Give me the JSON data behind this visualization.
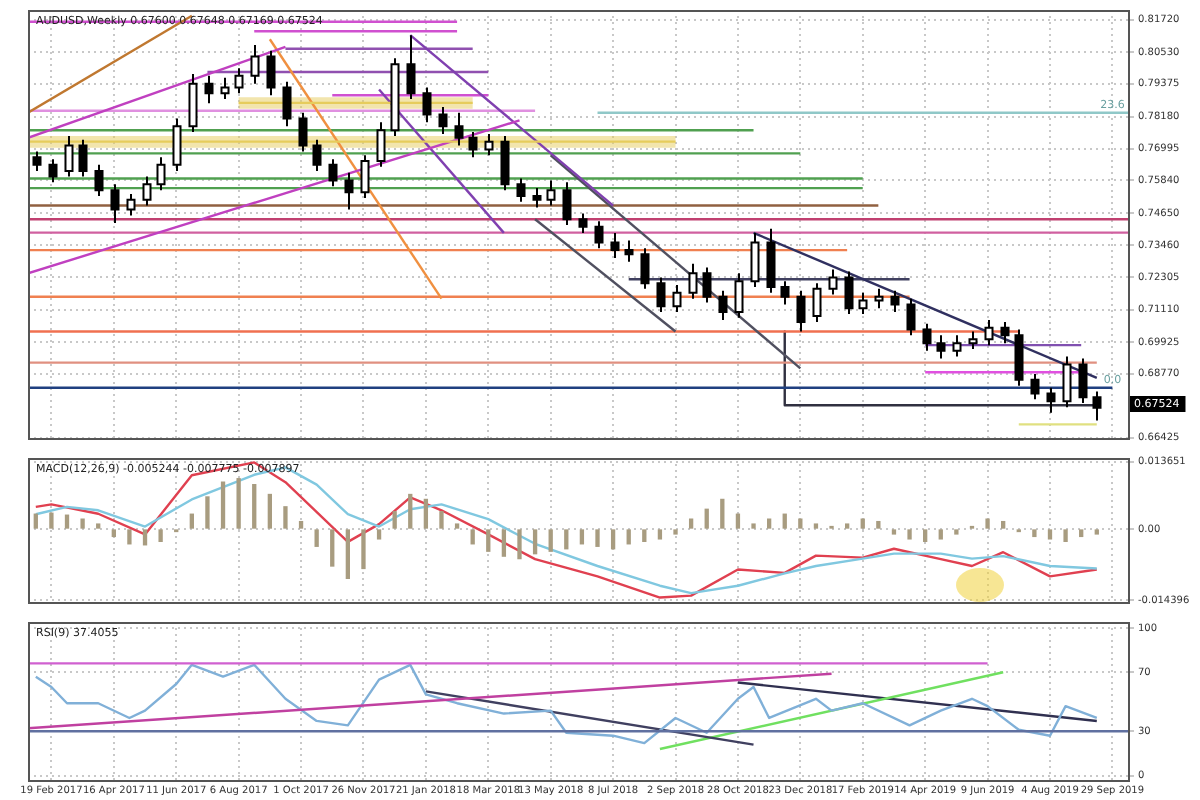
{
  "chart_data": [
    {
      "type": "candlestick",
      "title": "AUDUSD,Weekly 0.67600 0.67648 0.67169 0.67524",
      "tick_labels": "y",
      "grid": true,
      "xlim": [
        "2017-01-29",
        "2019-10-13"
      ],
      "xticks": [
        {
          "value": "2017-02-19",
          "label": null
        },
        {
          "value": "2017-04-16",
          "label": null
        },
        {
          "value": "2017-06-11",
          "label": null
        },
        {
          "value": "2017-08-06",
          "label": null
        },
        {
          "value": "2017-10-01",
          "label": null
        },
        {
          "value": "2017-11-26",
          "label": null
        },
        {
          "value": "2018-01-21",
          "label": null
        },
        {
          "value": "2018-03-18",
          "label": null
        },
        {
          "value": "2018-05-13",
          "label": null
        },
        {
          "value": "2018-07-08",
          "label": null
        },
        {
          "value": "2018-09-02",
          "label": null
        },
        {
          "value": "2018-10-28",
          "label": null
        },
        {
          "value": "2018-12-23",
          "label": null
        },
        {
          "value": "2019-02-17",
          "label": null
        },
        {
          "value": "2019-04-14",
          "label": null
        },
        {
          "value": "2019-06-09",
          "label": null
        },
        {
          "value": "2019-08-04",
          "label": null
        },
        {
          "value": "2019-09-29",
          "label": null
        }
      ],
      "ylim": [
        0.6641,
        0.8208
      ],
      "yticks": [
        {
          "value": 0.8172,
          "label": "0.81720"
        },
        {
          "value": 0.8053,
          "label": "0.80530"
        },
        0.79375,
        {
          "value": 0.7818,
          "label": "0.78180"
        },
        0.76995,
        {
          "value": 0.7584,
          "label": "0.75840"
        },
        {
          "value": 0.7465,
          "label": "0.74650"
        },
        {
          "value": 0.7346,
          "label": "0.73460"
        },
        0.72305,
        {
          "value": 0.7111,
          "label": "0.71110"
        },
        0.69925,
        {
          "value": 0.6877,
          "label": "0.68770"
        },
        0.66425
      ],
      "x": [
        "2017-02-05",
        "2017-02-19",
        "2017-03-05",
        "2017-03-19",
        "2017-04-02",
        "2017-04-16",
        "2017-04-30",
        "2017-05-14",
        "2017-05-28",
        "2017-06-11",
        "2017-06-25",
        "2017-07-09",
        "2017-07-23",
        "2017-08-06",
        "2017-08-20",
        "2017-09-03",
        "2017-09-17",
        "2017-10-01",
        "2017-10-15",
        "2017-10-29",
        "2017-11-12",
        "2017-11-26",
        "2017-12-10",
        "2017-12-24",
        "2018-01-07",
        "2018-01-21",
        "2018-02-04",
        "2018-02-18",
        "2018-03-04",
        "2018-03-18",
        "2018-04-01",
        "2018-04-15",
        "2018-04-29",
        "2018-05-13",
        "2018-05-27",
        "2018-06-10",
        "2018-06-24",
        "2018-07-08",
        "2018-07-22",
        "2018-08-05",
        "2018-08-19",
        "2018-09-02",
        "2018-09-16",
        "2018-09-30",
        "2018-10-14",
        "2018-10-28",
        "2018-11-11",
        "2018-11-25",
        "2018-12-09",
        "2018-12-23",
        "2019-01-06",
        "2019-01-20",
        "2019-02-03",
        "2019-02-17",
        "2019-03-03",
        "2019-03-17",
        "2019-03-31",
        "2019-04-14",
        "2019-04-28",
        "2019-05-12",
        "2019-05-26",
        "2019-06-09",
        "2019-06-23",
        "2019-07-07",
        "2019-07-21",
        "2019-08-04",
        "2019-08-18",
        "2019-09-01",
        "2019-09-15"
      ],
      "ohlc": [
        [
          0.7669,
          0.769,
          0.7619,
          0.7641
        ],
        [
          0.7641,
          0.7662,
          0.7577,
          0.7598
        ],
        [
          0.7619,
          0.7747,
          0.7598,
          0.7712
        ],
        [
          0.7712,
          0.7733,
          0.7598,
          0.7619
        ],
        [
          0.7619,
          0.7641,
          0.7527,
          0.7548
        ],
        [
          0.7548,
          0.757,
          0.7428,
          0.7478
        ],
        [
          0.7478,
          0.7534,
          0.7456,
          0.7513
        ],
        [
          0.7513,
          0.7598,
          0.7492,
          0.757
        ],
        [
          0.757,
          0.7669,
          0.7548,
          0.7641
        ],
        [
          0.7641,
          0.7811,
          0.7619,
          0.7782
        ],
        [
          0.7782,
          0.7974,
          0.7761,
          0.7938
        ],
        [
          0.7938,
          0.7967,
          0.7867,
          0.7903
        ],
        [
          0.7903,
          0.796,
          0.7882,
          0.7924
        ],
        [
          0.7924,
          0.7995,
          0.7903,
          0.7967
        ],
        [
          0.7967,
          0.808,
          0.7938,
          0.8038
        ],
        [
          0.8038,
          0.8059,
          0.7896,
          0.7924
        ],
        [
          0.7924,
          0.7945,
          0.7782,
          0.7811
        ],
        [
          0.7811,
          0.7832,
          0.769,
          0.7712
        ],
        [
          0.7712,
          0.7733,
          0.7619,
          0.7641
        ],
        [
          0.7641,
          0.7662,
          0.7563,
          0.7584
        ],
        [
          0.7584,
          0.7612,
          0.7478,
          0.7541
        ],
        [
          0.7541,
          0.7676,
          0.752,
          0.7655
        ],
        [
          0.7655,
          0.7797,
          0.7634,
          0.7768
        ],
        [
          0.7768,
          0.8031,
          0.7747,
          0.8009
        ],
        [
          0.8009,
          0.8116,
          0.7882,
          0.7903
        ],
        [
          0.7903,
          0.7924,
          0.7797,
          0.7825
        ],
        [
          0.7825,
          0.7853,
          0.7754,
          0.7782
        ],
        [
          0.7782,
          0.7832,
          0.7712,
          0.774
        ],
        [
          0.774,
          0.7761,
          0.7669,
          0.7697
        ],
        [
          0.7697,
          0.7754,
          0.7676,
          0.7726
        ],
        [
          0.7726,
          0.7747,
          0.7548,
          0.757
        ],
        [
          0.757,
          0.7591,
          0.7506,
          0.7527
        ],
        [
          0.7527,
          0.7556,
          0.7485,
          0.7513
        ],
        [
          0.7513,
          0.7584,
          0.7492,
          0.7548
        ],
        [
          0.7548,
          0.7577,
          0.7421,
          0.7442
        ],
        [
          0.7442,
          0.7463,
          0.7392,
          0.7414
        ],
        [
          0.7414,
          0.7435,
          0.7336,
          0.7357
        ],
        [
          0.7357,
          0.7392,
          0.73,
          0.7329
        ],
        [
          0.7329,
          0.7364,
          0.7286,
          0.7314
        ],
        [
          0.7314,
          0.7336,
          0.7187,
          0.7208
        ],
        [
          0.7208,
          0.7229,
          0.7102,
          0.7123
        ],
        [
          0.7123,
          0.7201,
          0.7102,
          0.7173
        ],
        [
          0.7173,
          0.7279,
          0.7151,
          0.7244
        ],
        [
          0.7244,
          0.7265,
          0.7137,
          0.7158
        ],
        [
          0.7158,
          0.718,
          0.7073,
          0.7102
        ],
        [
          0.7102,
          0.7244,
          0.7081,
          0.7215
        ],
        [
          0.7215,
          0.7392,
          0.7194,
          0.7357
        ],
        [
          0.7357,
          0.7407,
          0.7173,
          0.7194
        ],
        [
          0.7194,
          0.7215,
          0.713,
          0.7158
        ],
        [
          0.7158,
          0.718,
          0.7031,
          0.7066
        ],
        [
          0.7088,
          0.7208,
          0.7066,
          0.7187
        ],
        [
          0.7187,
          0.7258,
          0.7166,
          0.7229
        ],
        [
          0.7229,
          0.7251,
          0.7095,
          0.7116
        ],
        [
          0.7116,
          0.7173,
          0.7095,
          0.7144
        ],
        [
          0.7144,
          0.7187,
          0.7116,
          0.7158
        ],
        [
          0.7158,
          0.718,
          0.7102,
          0.713
        ],
        [
          0.713,
          0.7151,
          0.7017,
          0.7038
        ],
        [
          0.7038,
          0.7059,
          0.696,
          0.6988
        ],
        [
          0.6988,
          0.7017,
          0.6932,
          0.696
        ],
        [
          0.696,
          0.7017,
          0.6939,
          0.6988
        ],
        [
          0.6988,
          0.7031,
          0.6967,
          0.7003
        ],
        [
          0.7003,
          0.7073,
          0.6981,
          0.7045
        ],
        [
          0.7045,
          0.7066,
          0.6988,
          0.7017
        ],
        [
          0.7017,
          0.7038,
          0.6832,
          0.6854
        ],
        [
          0.6854,
          0.6875,
          0.6783,
          0.6804
        ],
        [
          0.6804,
          0.6825,
          0.6733,
          0.6776
        ],
        [
          0.6776,
          0.6939,
          0.6754,
          0.691
        ],
        [
          0.691,
          0.6932,
          0.6769,
          0.679
        ],
        [
          0.679,
          0.6811,
          0.6705,
          0.6752
        ]
      ],
      "series": [
        {
          "type": "line",
          "color": "#e6cc5c",
          "x": [
            "2017-08-06",
            "2018-03-04"
          ],
          "values": [
            0.7868,
            0.7868
          ],
          "upper": [
            0.7889,
            0.7889
          ],
          "lower": [
            0.7846,
            0.7846
          ]
        },
        {
          "type": "line",
          "color": "#e6cc5c",
          "x": [
            "2017-01-29",
            "2018-09-02"
          ],
          "values": [
            0.7726,
            0.7726
          ],
          "upper": [
            0.7747,
            0.7747
          ],
          "lower": [
            0.7704,
            0.7704
          ]
        },
        {
          "type": "line",
          "color": "#c07830",
          "x": [
            "2017-01-29",
            "2017-06-25"
          ],
          "values": [
            0.7832,
            0.8187
          ]
        },
        {
          "type": "line",
          "color": "#c040c0",
          "x": [
            "2017-01-29",
            "2017-09-17"
          ],
          "values": [
            0.774,
            0.8073
          ]
        },
        {
          "type": "line",
          "color": "#c040c0",
          "x": [
            "2017-01-29",
            "2018-04-15"
          ],
          "values": [
            0.7244,
            0.7804
          ]
        },
        {
          "type": "line",
          "color": "#f09040",
          "x": [
            "2017-09-03",
            "2018-02-04"
          ],
          "values": [
            0.8101,
            0.7151
          ]
        },
        {
          "type": "line",
          "color": "#8040b0",
          "x": [
            "2017-12-10",
            "2018-04-01"
          ],
          "values": [
            0.7917,
            0.7392
          ]
        },
        {
          "type": "line",
          "color": "#8040b0",
          "x": [
            "2018-01-07",
            "2018-07-08"
          ],
          "values": [
            0.8116,
            0.7492
          ]
        },
        {
          "type": "line",
          "color": "#505060",
          "x": [
            "2018-05-13",
            "2018-12-23"
          ],
          "values": [
            0.7676,
            0.6896
          ]
        },
        {
          "type": "line",
          "color": "#505060",
          "x": [
            "2018-04-29",
            "2018-09-02"
          ],
          "values": [
            0.7442,
            0.7031
          ]
        },
        {
          "type": "line",
          "color": "#303060",
          "x": [
            "2018-11-11",
            "2019-09-15"
          ],
          "values": [
            0.7392,
            0.6861
          ]
        },
        {
          "type": "line",
          "color": "#d050d0",
          "x": [
            "2017-01-29",
            "2018-02-18"
          ],
          "values": [
            0.8165,
            0.8165
          ]
        },
        {
          "type": "line",
          "color": "#d050d0",
          "x": [
            "2017-08-20",
            "2018-02-18"
          ],
          "values": [
            0.813,
            0.813
          ]
        },
        {
          "type": "line",
          "color": "#9050b0",
          "x": [
            "2017-09-17",
            "2018-03-04"
          ],
          "values": [
            0.8066,
            0.8066
          ]
        },
        {
          "type": "line",
          "color": "#9050b0",
          "x": [
            "2017-07-09",
            "2018-03-18"
          ],
          "values": [
            0.7981,
            0.7981
          ]
        },
        {
          "type": "line",
          "color": "#d050d0",
          "x": [
            "2017-10-29",
            "2018-03-18"
          ],
          "values": [
            0.7896,
            0.7896
          ]
        },
        {
          "type": "line",
          "color": "#e090e0",
          "x": [
            "2017-01-29",
            "2018-04-29"
          ],
          "values": [
            0.7839,
            0.7839
          ]
        },
        {
          "type": "line",
          "color": "#90c8c8",
          "x": [
            "2018-06-24",
            "2019-10-13"
          ],
          "values": [
            0.7832,
            0.7832
          ]
        },
        {
          "type": "line",
          "color": "#50a050",
          "x": [
            "2017-01-29",
            "2018-11-11"
          ],
          "values": [
            0.7768,
            0.7768
          ]
        },
        {
          "type": "line",
          "color": "#50a050",
          "x": [
            "2017-01-29",
            "2018-12-23"
          ],
          "values": [
            0.7683,
            0.7683
          ]
        },
        {
          "type": "line",
          "color": "#50a050",
          "x": [
            "2017-01-29",
            "2019-02-17"
          ],
          "values": [
            0.7591,
            0.7591
          ]
        },
        {
          "type": "line",
          "color": "#50a050",
          "x": [
            "2017-01-29",
            "2019-02-17"
          ],
          "values": [
            0.7556,
            0.7556
          ]
        },
        {
          "type": "line",
          "color": "#906040",
          "x": [
            "2017-01-29",
            "2019-03-03"
          ],
          "values": [
            0.7492,
            0.7492
          ]
        },
        {
          "type": "line",
          "color": "#c04070",
          "x": [
            "2017-01-29",
            "2019-10-13"
          ],
          "values": [
            0.7442,
            0.7442
          ]
        },
        {
          "type": "line",
          "color": "#d060a0",
          "x": [
            "2017-01-29",
            "2019-10-13"
          ],
          "values": [
            0.7393,
            0.7393
          ]
        },
        {
          "type": "line",
          "color": "#f08050",
          "x": [
            "2017-01-29",
            "2019-02-03"
          ],
          "values": [
            0.7329,
            0.7329
          ]
        },
        {
          "type": "line",
          "color": "#404060",
          "x": [
            "2018-07-22",
            "2019-03-31"
          ],
          "values": [
            0.7222,
            0.7222
          ]
        },
        {
          "type": "line",
          "color": "#f08050",
          "x": [
            "2017-01-29",
            "2019-03-31"
          ],
          "values": [
            0.7158,
            0.7158
          ]
        },
        {
          "type": "line",
          "color": "#f07050",
          "x": [
            "2017-01-29",
            "2019-07-07"
          ],
          "values": [
            0.7031,
            0.7031
          ]
        },
        {
          "type": "line",
          "color": "#e09080",
          "x": [
            "2017-01-29",
            "2019-09-15"
          ],
          "values": [
            0.6917,
            0.6917
          ]
        },
        {
          "type": "line",
          "color": "#204080",
          "x": [
            "2017-01-29",
            "2019-09-29"
          ],
          "values": [
            0.6825,
            0.6825
          ]
        },
        {
          "type": "line",
          "color": "#303040",
          "x": [
            "2018-12-09",
            "2018-12-09",
            "2019-09-15"
          ],
          "values": [
            0.7031,
            0.6761,
            0.6761
          ]
        },
        {
          "type": "line",
          "color": "#8050b0",
          "x": [
            "2019-04-14",
            "2019-09-01"
          ],
          "values": [
            0.6981,
            0.6981
          ]
        },
        {
          "type": "line",
          "color": "#e050e0",
          "x": [
            "2019-04-14",
            "2019-09-01"
          ],
          "values": [
            0.6882,
            0.6882
          ]
        },
        {
          "type": "line",
          "color": "#e0e080",
          "x": [
            "2019-07-07",
            "2019-09-15"
          ],
          "values": [
            0.6691,
            0.6691
          ]
        }
      ],
      "annotations": [
        {
          "text": "23.6",
          "x": "2019-09-29",
          "y": 0.7832
        },
        {
          "text": "0.0",
          "x": "2019-09-29",
          "y": 0.6825
        },
        "0.67524"
      ]
    },
    {
      "type": "bar",
      "title": "MACD(12,26,9) -0.005244 -0.007775 -0.007897",
      "tick_labels": "y",
      "grid": true,
      "xlim": [
        "2017-01-29",
        "2019-10-13"
      ],
      "xticks": [
        {
          "value": "2017-02-19",
          "label": null
        },
        {
          "value": "2017-04-16",
          "label": null
        },
        {
          "value": "2017-06-11",
          "label": null
        },
        {
          "value": "2017-08-06",
          "label": null
        },
        {
          "value": "2017-10-01",
          "label": null
        },
        {
          "value": "2017-11-26",
          "label": null
        },
        {
          "value": "2018-01-21",
          "label": null
        },
        {
          "value": "2018-03-18",
          "label": null
        },
        {
          "value": "2018-05-13",
          "label": null
        },
        {
          "value": "2018-07-08",
          "label": null
        },
        {
          "value": "2018-09-02",
          "label": null
        },
        {
          "value": "2018-10-28",
          "label": null
        },
        {
          "value": "2018-12-23",
          "label": null
        },
        {
          "value": "2019-02-17",
          "label": null
        },
        {
          "value": "2019-04-14",
          "label": null
        },
        {
          "value": "2019-06-09",
          "label": null
        },
        {
          "value": "2019-08-04",
          "label": null
        },
        {
          "value": "2019-09-29",
          "label": null
        }
      ],
      "ylim": [
        -0.0148,
        0.0144
      ],
      "yticks": [
        0.013651,
        {
          "value": 0,
          "label": "0.00"
        },
        -0.014396
      ],
      "x": [
        "2017-02-05",
        "2017-02-19",
        "2017-03-05",
        "2017-03-19",
        "2017-04-02",
        "2017-04-16",
        "2017-04-30",
        "2017-05-14",
        "2017-05-28",
        "2017-06-11",
        "2017-06-25",
        "2017-07-09",
        "2017-07-23",
        "2017-08-06",
        "2017-08-20",
        "2017-09-03",
        "2017-09-17",
        "2017-10-01",
        "2017-10-15",
        "2017-10-29",
        "2017-11-12",
        "2017-11-26",
        "2017-12-10",
        "2017-12-24",
        "2018-01-07",
        "2018-01-21",
        "2018-02-04",
        "2018-02-18",
        "2018-03-04",
        "2018-03-18",
        "2018-04-01",
        "2018-04-15",
        "2018-04-29",
        "2018-05-13",
        "2018-05-27",
        "2018-06-10",
        "2018-06-24",
        "2018-07-08",
        "2018-07-22",
        "2018-08-05",
        "2018-08-19",
        "2018-09-02",
        "2018-09-16",
        "2018-09-30",
        "2018-10-14",
        "2018-10-28",
        "2018-11-11",
        "2018-11-25",
        "2018-12-09",
        "2018-12-23",
        "2019-01-06",
        "2019-01-20",
        "2019-02-03",
        "2019-02-17",
        "2019-03-03",
        "2019-03-17",
        "2019-03-31",
        "2019-04-14",
        "2019-04-28",
        "2019-05-12",
        "2019-05-26",
        "2019-06-09",
        "2019-06-23",
        "2019-07-07",
        "2019-07-21",
        "2019-08-04",
        "2019-08-18",
        "2019-09-01",
        "2019-09-15"
      ],
      "series": [
        {
          "type": "bar",
          "color": "#a89c80",
          "values": [
            0.003,
            0.0032,
            0.0028,
            0.002,
            0.001,
            -0.0015,
            -0.003,
            -0.0032,
            -0.0025,
            -0.0005,
            0.003,
            0.0065,
            0.0095,
            0.0102,
            0.009,
            0.007,
            0.0045,
            0.0015,
            -0.0035,
            -0.0075,
            -0.01,
            -0.008,
            -0.002,
            0.0035,
            0.007,
            0.006,
            0.0035,
            0.001,
            -0.003,
            -0.0045,
            -0.0055,
            -0.006,
            -0.005,
            -0.0045,
            -0.004,
            -0.003,
            -0.0035,
            -0.004,
            -0.003,
            -0.0025,
            -0.002,
            -0.001,
            0.002,
            0.004,
            0.006,
            0.003,
            0.001,
            0.002,
            0.003,
            0.002,
            0.001,
            0.0005,
            0.001,
            0.002,
            0.0015,
            -0.001,
            -0.002,
            -0.0025,
            -0.002,
            -0.001,
            0.0005,
            0.002,
            0.0015,
            -0.0005,
            -0.0015,
            -0.002,
            -0.0025,
            -0.0015,
            -0.001
          ]
        },
        {
          "type": "line",
          "color": "#80c8e0",
          "x": [
            "2017-02-05",
            "2017-03-05",
            "2017-04-02",
            "2017-05-14",
            "2017-06-25",
            "2017-08-20",
            "2017-09-17",
            "2017-10-15",
            "2017-11-12",
            "2017-12-10",
            "2018-01-07",
            "2018-02-04",
            "2018-03-18",
            "2018-04-29",
            "2018-06-24",
            "2018-08-19",
            "2018-09-16",
            "2018-10-28",
            "2018-12-09",
            "2019-01-06",
            "2019-02-17",
            "2019-03-17",
            "2019-04-28",
            "2019-05-26",
            "2019-06-23",
            "2019-08-04",
            "2019-09-15"
          ],
          "values": [
            0.003,
            0.0045,
            0.0038,
            0.0005,
            0.006,
            0.011,
            0.0125,
            0.009,
            0.003,
            0.0005,
            0.004,
            0.005,
            0.002,
            -0.003,
            -0.0075,
            -0.0115,
            -0.013,
            -0.0115,
            -0.009,
            -0.0075,
            -0.006,
            -0.005,
            -0.005,
            -0.006,
            -0.0055,
            -0.0075,
            -0.008
          ]
        },
        {
          "type": "line",
          "color": "#e04050",
          "x": [
            "2017-02-05",
            "2017-02-19",
            "2017-04-02",
            "2017-05-14",
            "2017-06-25",
            "2017-08-20",
            "2017-09-17",
            "2017-11-12",
            "2017-12-10",
            "2018-01-07",
            "2018-02-04",
            "2018-03-18",
            "2018-04-29",
            "2018-06-24",
            "2018-08-19",
            "2018-09-16",
            "2018-10-28",
            "2018-12-09",
            "2019-01-06",
            "2019-02-17",
            "2019-03-17",
            "2019-04-28",
            "2019-05-26",
            "2019-06-23",
            "2019-08-04",
            "2019-09-15"
          ],
          "values": [
            0.0045,
            0.005,
            0.0031,
            -0.0011,
            0.0109,
            0.0135,
            0.0095,
            -0.0026,
            0.001,
            0.0064,
            0.0038,
            -0.0011,
            -0.0061,
            -0.0096,
            -0.0139,
            -0.0135,
            -0.0082,
            -0.0089,
            -0.0054,
            -0.0058,
            -0.004,
            -0.0061,
            -0.0075,
            -0.0047,
            -0.0096,
            -0.0082
          ]
        }
      ]
    },
    {
      "type": "line",
      "title": "RSI(9) 37.4055",
      "grid": true,
      "xlim": [
        "2017-01-29",
        "2019-10-13"
      ],
      "xticks": [
        {
          "value": "2017-02-19",
          "label": "19 Feb 2017"
        },
        {
          "value": "2017-04-16",
          "label": "16 Apr 2017"
        },
        {
          "value": "2017-06-11",
          "label": "11 Jun 2017"
        },
        {
          "value": "2017-08-06",
          "label": "6 Aug 2017"
        },
        {
          "value": "2017-10-01",
          "label": "1 Oct 2017"
        },
        {
          "value": "2017-11-26",
          "label": "26 Nov 2017"
        },
        {
          "value": "2018-01-21",
          "label": "21 Jan 2018"
        },
        {
          "value": "2018-03-18",
          "label": "18 Mar 2018"
        },
        {
          "value": "2018-05-13",
          "label": "13 May 2018"
        },
        {
          "value": "2018-07-08",
          "label": "8 Jul 2018"
        },
        {
          "value": "2018-09-02",
          "label": "2 Sep 2018"
        },
        {
          "value": "2018-10-28",
          "label": "28 Oct 2018"
        },
        {
          "value": "2018-12-23",
          "label": "23 Dec 2018"
        },
        {
          "value": "2019-02-17",
          "label": "17 Feb 2019"
        },
        {
          "value": "2019-04-14",
          "label": "14 Apr 2019"
        },
        {
          "value": "2019-06-09",
          "label": "9 Jun 2019"
        },
        {
          "value": "2019-08-04",
          "label": "4 Aug 2019"
        },
        {
          "value": "2019-09-29",
          "label": "29 Sep 2019"
        }
      ],
      "ylim": [
        -3,
        104
      ],
      "yticks": [
        100,
        70,
        30,
        0
      ],
      "series": [
        {
          "color": "#d060d0",
          "x": [
            "2017-01-29",
            "2019-06-09"
          ],
          "values": [
            76,
            76
          ]
        },
        {
          "color": "#c040a0",
          "x": [
            "2017-01-29",
            "2019-01-20"
          ],
          "values": [
            32,
            69
          ]
        },
        {
          "color": "#6070a0",
          "x": [
            "2017-01-29",
            "2019-10-13"
          ],
          "values": [
            30,
            30
          ]
        },
        {
          "color": "#80b0d8",
          "x": [
            "2017-02-05",
            "2017-02-19",
            "2017-03-05",
            "2017-04-02",
            "2017-04-30",
            "2017-05-14",
            "2017-06-11",
            "2017-06-25",
            "2017-07-23",
            "2017-08-20",
            "2017-09-17",
            "2017-10-15",
            "2017-11-12",
            "2017-12-10",
            "2018-01-07",
            "2018-01-21",
            "2018-02-18",
            "2018-04-01",
            "2018-05-13",
            "2018-05-27",
            "2018-07-08",
            "2018-08-05",
            "2018-09-02",
            "2018-09-30",
            "2018-10-28",
            "2018-11-11",
            "2018-11-25",
            "2019-01-06",
            "2019-01-20",
            "2019-02-17",
            "2019-03-31",
            "2019-04-28",
            "2019-05-26",
            "2019-06-09",
            "2019-07-07",
            "2019-08-04",
            "2019-08-18",
            "2019-09-15"
          ],
          "values": [
            67,
            60,
            49,
            49,
            39,
            44,
            62,
            75,
            67,
            75,
            52,
            37,
            34,
            65,
            75,
            55,
            49,
            42,
            44,
            29,
            27,
            22,
            39,
            29,
            52,
            60,
            39,
            52,
            44,
            49,
            34,
            44,
            52,
            47,
            31,
            27,
            47,
            39
          ]
        },
        {
          "color": "#404060",
          "x": [
            "2018-01-21",
            "2018-11-11"
          ],
          "values": [
            57,
            21
          ]
        },
        {
          "color": "#70e060",
          "x": [
            "2018-08-19",
            "2019-06-23"
          ],
          "values": [
            18,
            70
          ]
        },
        {
          "color": "#303050",
          "x": [
            "2018-10-28",
            "2019-09-15"
          ],
          "values": [
            63,
            37
          ]
        }
      ]
    }
  ]
}
